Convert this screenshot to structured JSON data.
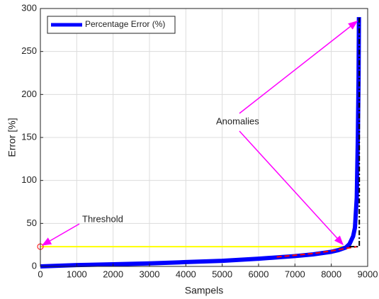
{
  "chart_data": {
    "type": "line",
    "x_label": "Sampels",
    "y_label": "Error [%]",
    "xlim": [
      0,
      9000
    ],
    "xticks": [
      0,
      1000,
      2000,
      3000,
      4000,
      5000,
      6000,
      7000,
      8000,
      9000
    ],
    "ylim": [
      0,
      300
    ],
    "yticks": [
      0,
      50,
      100,
      150,
      200,
      250,
      300
    ],
    "grid": true,
    "legend_position": "upper left",
    "series": [
      {
        "name": "Percentage Error (%)",
        "color": "#0000ff",
        "x": [
          0,
          1000,
          2000,
          3000,
          4000,
          5000,
          6000,
          7000,
          7500,
          8000,
          8200,
          8400,
          8500,
          8600,
          8650,
          8700,
          8730,
          8750,
          8760
        ],
        "values": [
          0,
          1.5,
          2.5,
          3.5,
          5,
          6.5,
          9,
          12,
          14,
          17,
          19,
          22,
          26,
          35,
          45,
          80,
          150,
          220,
          290
        ]
      }
    ],
    "lines": [
      {
        "color": "#ffff00",
        "dash": "solid",
        "x": [
          0,
          8450
        ],
        "values": [
          23,
          23
        ]
      },
      {
        "color": "#ff0000",
        "dash": "dashed",
        "x": [
          6500,
          7000,
          7500,
          8000,
          8400,
          8700
        ],
        "values": [
          11,
          13,
          15,
          18,
          21,
          23
        ]
      },
      {
        "color": "#000000",
        "dash": "dashdot",
        "x": [
          8500,
          8770,
          8770
        ],
        "values": [
          23,
          23,
          290
        ]
      }
    ],
    "threshold": {
      "x": 0,
      "value": 23,
      "color": "#ff0000"
    },
    "annotations": [
      "Threshold",
      "Anomalies"
    ]
  }
}
